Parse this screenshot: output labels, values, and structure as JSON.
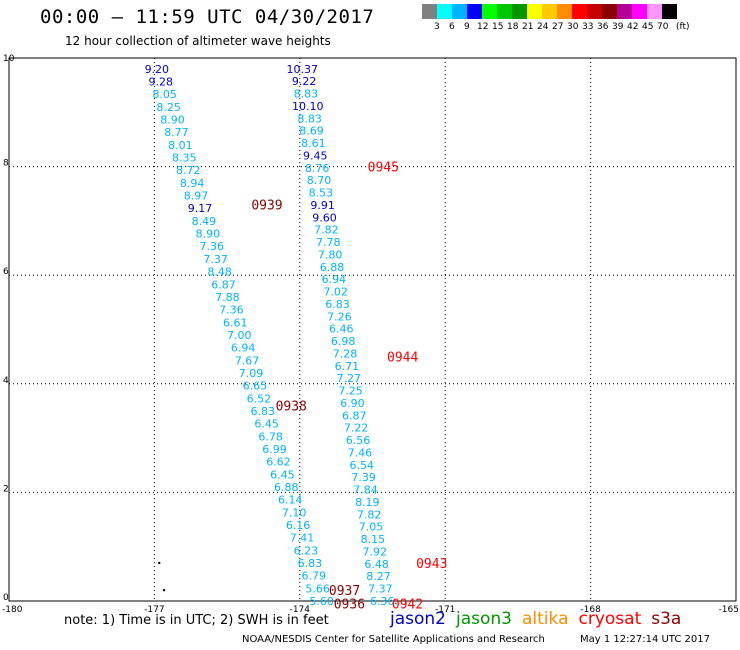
{
  "header": {
    "title": "00:00 – 11:59 UTC 04/30/2017",
    "subtitle": "12 hour collection of altimeter wave heights"
  },
  "colorbar": {
    "colors": [
      "#808080",
      "#00ffff",
      "#00b4ff",
      "#0000ff",
      "#00ff00",
      "#00c800",
      "#009600",
      "#ffff00",
      "#ffc800",
      "#ff8c00",
      "#ff0000",
      "#c80000",
      "#8b0000",
      "#b40096",
      "#ff00ff",
      "#ff96ff",
      "#000000"
    ],
    "labels": [
      "3",
      "6",
      "9",
      "12",
      "15",
      "18",
      "21",
      "24",
      "27",
      "30",
      "33",
      "36",
      "39",
      "42",
      "45",
      "70",
      "(ft)"
    ]
  },
  "footer": {
    "note": "note:  1) Time is in UTC;  2) SWH is in feet",
    "satellites": [
      {
        "name": "jason2",
        "color": "#0000cc"
      },
      {
        "name": "jason3",
        "color": "#009600"
      },
      {
        "name": "altika",
        "color": "#ff8c00"
      },
      {
        "name": "cryosat",
        "color": "#ff0000"
      },
      {
        "name": "s3a",
        "color": "#8b0000"
      }
    ],
    "credit": "NOAA/NESDIS Center for Satellite Applications and Research",
    "timestamp": "May  1 12:27:14 UTC 2017"
  },
  "chart_data": {
    "type": "scatter",
    "title": "00:00 – 11:59 UTC 04/30/2017",
    "subtitle": "12 hour collection of altimeter wave heights",
    "xlim": [
      -180,
      -165
    ],
    "ylim": [
      0,
      10
    ],
    "x_ticks": [
      "-180",
      "-177",
      "-174",
      "-171",
      "-168",
      "-165"
    ],
    "y_ticks": [
      "0",
      "2",
      "4",
      "6",
      "8",
      "10"
    ],
    "grid": true,
    "swh_tracks": [
      {
        "name": "track-west",
        "x_start": -176.95,
        "x_end": -173.55,
        "y_start": 9.8,
        "y_end": 0.0,
        "values": [
          "9.20",
          "9.28",
          "8.05",
          "8.25",
          "8.90",
          "8.77",
          "8.01",
          "8.35",
          "8.72",
          "8.94",
          "8.97",
          "9.17",
          "8.49",
          "8.90",
          "7.36",
          "7.37",
          "8.48",
          "6.87",
          "7.88",
          "7.36",
          "6.61",
          "7.00",
          "6.94",
          "7.67",
          "7.09",
          "6.65",
          "6.52",
          "6.83",
          "6.45",
          "6.78",
          "6.99",
          "6.62",
          "6.45",
          "6.88",
          "6.14",
          "7.10",
          "6.16",
          "7.41",
          "6.23",
          "6.83",
          "6.79",
          "5.66",
          "5.60"
        ],
        "colors": [
          "#0000cc",
          "#0000cc",
          "#00b4ff",
          "#00b4ff",
          "#00b4ff",
          "#00b4ff",
          "#00b4ff",
          "#00b4ff",
          "#00b4ff",
          "#00b4ff",
          "#00b4ff",
          "#0000cc",
          "#00b4ff",
          "#00b4ff",
          "#00b4ff",
          "#00b4ff",
          "#00b4ff",
          "#00b4ff",
          "#00b4ff",
          "#00b4ff",
          "#00b4ff",
          "#00b4ff",
          "#00b4ff",
          "#00b4ff",
          "#00b4ff",
          "#00b4ff",
          "#00b4ff",
          "#00b4ff",
          "#00b4ff",
          "#00b4ff",
          "#00b4ff",
          "#00b4ff",
          "#00b4ff",
          "#00b4ff",
          "#00b4ff",
          "#00b4ff",
          "#00b4ff",
          "#00b4ff",
          "#00b4ff",
          "#00b4ff",
          "#00b4ff",
          "#00b4ff",
          "#00b4ff"
        ]
      },
      {
        "name": "track-east",
        "x_start": -173.95,
        "x_end": -172.3,
        "y_start": 9.8,
        "y_end": 0.0,
        "values": [
          "10.37",
          "9.22",
          "8.83",
          "10.10",
          "8.83",
          "8.69",
          "8.61",
          "9.45",
          "8.76",
          "8.70",
          "8.53",
          "9.91",
          "9.60",
          "7.82",
          "7.78",
          "7.80",
          "6.88",
          "6.94",
          "7.02",
          "6.83",
          "7.26",
          "6.46",
          "6.98",
          "7.28",
          "6.71",
          "7.27",
          "7.25",
          "6.90",
          "6.87",
          "7.22",
          "6.56",
          "7.46",
          "6.54",
          "7.39",
          "7.84",
          "8.19",
          "7.82",
          "7.05",
          "8.15",
          "7.92",
          "6.48",
          "8.27",
          "7.37",
          "6.36"
        ],
        "colors": [
          "#0000cc",
          "#0000cc",
          "#00b4ff",
          "#0000cc",
          "#00b4ff",
          "#00b4ff",
          "#00b4ff",
          "#0000cc",
          "#00b4ff",
          "#00b4ff",
          "#00b4ff",
          "#0000cc",
          "#0000cc",
          "#00b4ff",
          "#00b4ff",
          "#00b4ff",
          "#00b4ff",
          "#00b4ff",
          "#00b4ff",
          "#00b4ff",
          "#00b4ff",
          "#00b4ff",
          "#00b4ff",
          "#00b4ff",
          "#00b4ff",
          "#00b4ff",
          "#00b4ff",
          "#00b4ff",
          "#00b4ff",
          "#00b4ff",
          "#00b4ff",
          "#00b4ff",
          "#00b4ff",
          "#00b4ff",
          "#00b4ff",
          "#00b4ff",
          "#00b4ff",
          "#00b4ff",
          "#00b4ff",
          "#00b4ff",
          "#00b4ff",
          "#00b4ff",
          "#00b4ff",
          "#00b4ff"
        ]
      }
    ],
    "time_labels": [
      {
        "text": "0945",
        "x": -172.6,
        "y": 8.0,
        "color": "#ff0000"
      },
      {
        "text": "0939",
        "x": -175.0,
        "y": 7.3,
        "color": "#8b0000"
      },
      {
        "text": "0944",
        "x": -172.2,
        "y": 4.5,
        "color": "#ff0000"
      },
      {
        "text": "0938",
        "x": -174.5,
        "y": 3.6,
        "color": "#8b0000"
      },
      {
        "text": "0943",
        "x": -171.6,
        "y": 0.7,
        "color": "#ff0000"
      },
      {
        "text": "0937",
        "x": -173.4,
        "y": 0.2,
        "color": "#8b0000"
      },
      {
        "text": "0936",
        "x": -173.3,
        "y": -0.05,
        "color": "#8b0000"
      },
      {
        "text": "0942",
        "x": -172.1,
        "y": -0.05,
        "color": "#ff0000"
      }
    ],
    "dots": [
      {
        "x": -176.9,
        "y": 0.7
      },
      {
        "x": -176.8,
        "y": 0.2
      }
    ]
  }
}
